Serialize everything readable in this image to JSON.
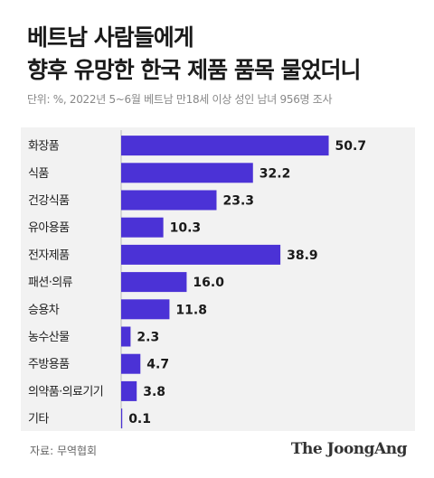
{
  "header": {
    "title_line1": "베트남 사람들에게",
    "title_line2": "향후 유망한 한국 제품 품목 물었더니",
    "unit_note": "단위: %, 2022년 5~6월 베트남 만18세 이상 성인 남녀 956명 조사"
  },
  "footer": {
    "source": "자료: 무역협회",
    "brand": "The JoongAng"
  },
  "chart_data": {
    "type": "bar",
    "orientation": "horizontal",
    "categories": [
      "화장품",
      "식품",
      "건강식품",
      "유아용품",
      "전자제품",
      "패션·의류",
      "승용차",
      "농수산물",
      "주방용품",
      "의약품·의료기기",
      "기타"
    ],
    "values": [
      50.7,
      32.2,
      23.3,
      10.3,
      38.9,
      16.0,
      11.8,
      2.3,
      4.7,
      3.8,
      0.1
    ],
    "value_labels": [
      "50.7",
      "32.2",
      "23.3",
      "10.3",
      "38.9",
      "16.0",
      "11.8",
      "2.3",
      "4.7",
      "3.8",
      "0.1"
    ],
    "xlim": [
      0,
      55
    ],
    "bar_color": "#4b32d6",
    "grid": false
  }
}
